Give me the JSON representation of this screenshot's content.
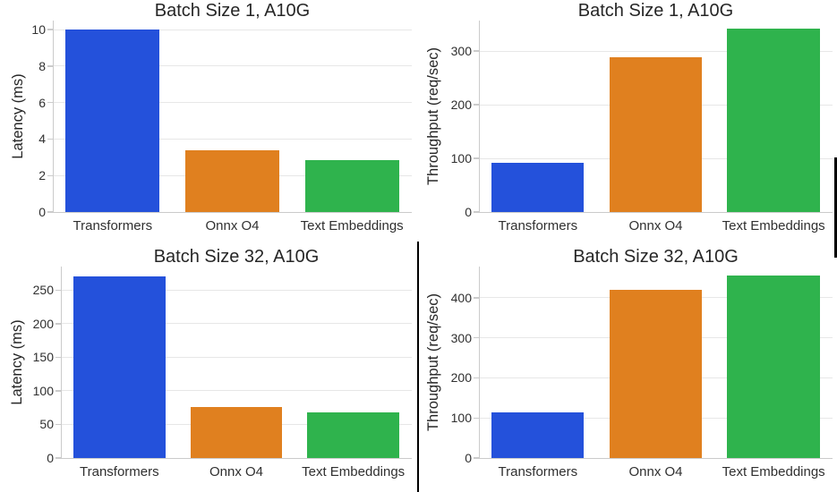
{
  "figure": {
    "background": "#ffffff",
    "text_color": "#262626",
    "grid_color": "#e7e7e7",
    "spine_color": "#cbcbcb",
    "bar_colors": [
      "#2451db",
      "#e0801f",
      "#2fb34d"
    ],
    "bar_color_names": [
      "blue",
      "orange",
      "green"
    ],
    "categories": [
      "Transformers",
      "Onnx O4",
      "Text Embeddings"
    ]
  },
  "chart_data": [
    {
      "id": "batch1-latency",
      "type": "bar",
      "title": "Batch Size 1, A10G",
      "xlabel": "",
      "ylabel": "Latency (ms)",
      "categories": [
        "Transformers",
        "Onnx O4",
        "Text Embeddings"
      ],
      "values": [
        10.0,
        3.4,
        2.85
      ],
      "yticks": [
        0,
        2,
        4,
        6,
        8,
        10
      ],
      "ylim": [
        0,
        10.5
      ],
      "grid": true,
      "legend_position": "none"
    },
    {
      "id": "batch1-throughput",
      "type": "bar",
      "title": "Batch Size 1, A10G",
      "xlabel": "",
      "ylabel": "Throughput (req/sec)",
      "categories": [
        "Transformers",
        "Onnx O4",
        "Text Embeddings"
      ],
      "values": [
        92,
        288,
        342
      ],
      "yticks": [
        0,
        100,
        200,
        300
      ],
      "ylim": [
        0,
        357
      ],
      "grid": true,
      "legend_position": "none"
    },
    {
      "id": "batch32-latency",
      "type": "bar",
      "title": "Batch Size 32, A10G",
      "xlabel": "",
      "ylabel": "Latency (ms)",
      "categories": [
        "Transformers",
        "Onnx O4",
        "Text Embeddings"
      ],
      "values": [
        271,
        76,
        68
      ],
      "yticks": [
        0,
        50,
        100,
        150,
        200,
        250
      ],
      "ylim": [
        0,
        285
      ],
      "grid": true,
      "legend_position": "none"
    },
    {
      "id": "batch32-throughput",
      "type": "bar",
      "title": "Batch Size 32, A10G",
      "xlabel": "",
      "ylabel": "Throughput (req/sec)",
      "categories": [
        "Transformers",
        "Onnx O4",
        "Text Embeddings"
      ],
      "values": [
        115,
        420,
        456
      ],
      "yticks": [
        0,
        100,
        200,
        300,
        400
      ],
      "ylim": [
        0,
        478
      ],
      "grid": true,
      "legend_position": "none"
    }
  ]
}
